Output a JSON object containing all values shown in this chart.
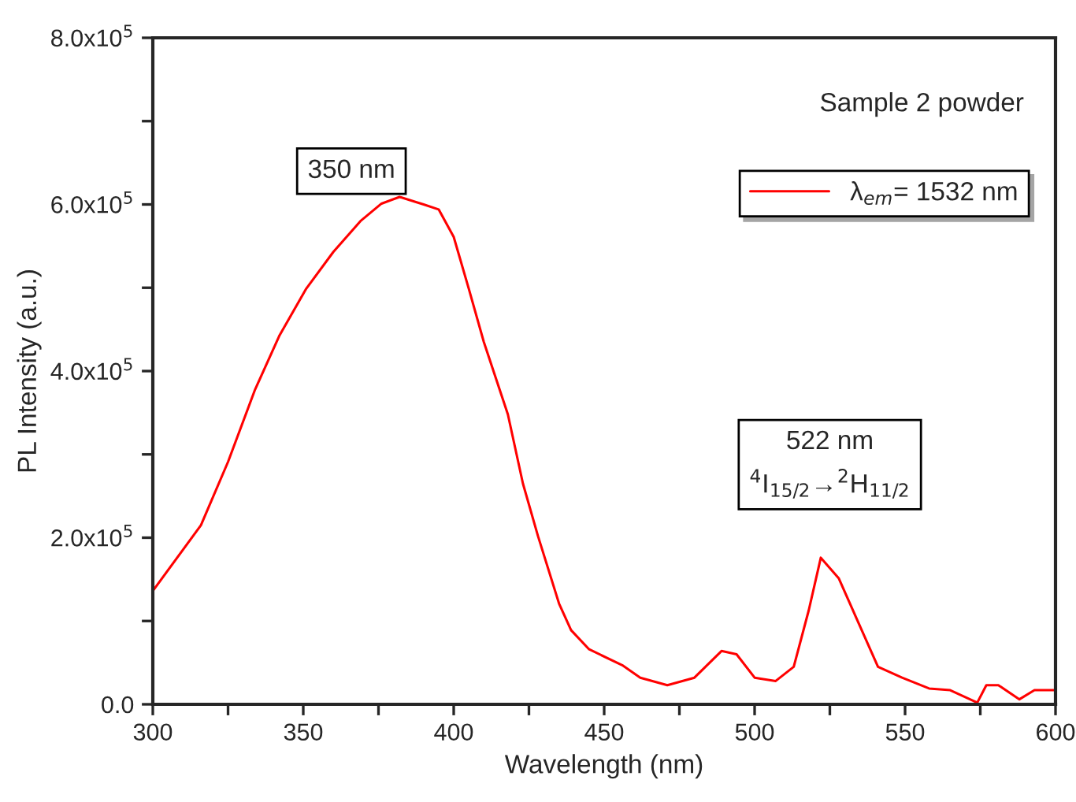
{
  "chart_data": {
    "type": "line",
    "xlabel": "Wavelength (nm)",
    "ylabel": "PL Intensity (a.u.)",
    "xlim": [
      300,
      600
    ],
    "ylim": [
      0,
      800000
    ],
    "xticks": [
      300,
      {
        "value": 325,
        "label": null
      },
      350,
      {
        "value": 375,
        "label": null
      },
      400,
      {
        "value": 425,
        "label": null
      },
      450,
      {
        "value": 475,
        "label": null
      },
      500,
      {
        "value": 525,
        "label": null
      },
      550,
      {
        "value": 575,
        "label": null
      },
      600
    ],
    "yticks": [
      {
        "value": 0,
        "label": "0.0"
      },
      {
        "value": 100000,
        "label": null
      },
      {
        "value": 200000,
        "label": "2.0x10$^{5}$"
      },
      {
        "value": 300000,
        "label": null
      },
      {
        "value": 400000,
        "label": "4.0x10$^{5}$"
      },
      {
        "value": 500000,
        "label": null
      },
      {
        "value": 600000,
        "label": "6.0x10$^{5}$"
      },
      {
        "value": 700000,
        "label": null
      },
      {
        "value": 800000,
        "label": "8.0x10$^{5}$"
      }
    ],
    "grid": false,
    "legend": "top right",
    "marker": "none",
    "line_style": "solid",
    "series": [
      {
        "name": "λ$_{em}$= 1532 nm",
        "color": "#ff0000",
        "x": [
          300,
          316,
          325,
          334,
          342,
          351,
          360,
          369,
          376,
          382,
          390,
          395,
          400,
          405,
          410,
          418,
          423,
          428,
          435,
          439,
          445,
          456,
          462,
          471,
          480,
          489,
          494,
          500,
          507,
          513,
          518,
          522,
          528,
          534,
          541,
          549,
          558,
          565,
          574,
          577,
          581,
          588,
          593,
          600
        ],
        "values": [
          136000,
          215000,
          291000,
          378000,
          442000,
          499000,
          543000,
          580000,
          601000,
          609000,
          600000,
          594000,
          561000,
          499000,
          435000,
          348000,
          265000,
          202000,
          121000,
          89000,
          66000,
          47000,
          32000,
          23000,
          32000,
          64000,
          60000,
          32000,
          28000,
          45000,
          113000,
          176000,
          151000,
          102000,
          45000,
          32000,
          19000,
          17000,
          2000,
          23000,
          23000,
          6000,
          17000,
          17000
        ]
      }
    ],
    "annotations": [
      "Sample 2 powder",
      "350 nm",
      "522 nm\n$^{4}$I$_{15/2}$→$^{2}$H$_{11/2}$"
    ]
  }
}
